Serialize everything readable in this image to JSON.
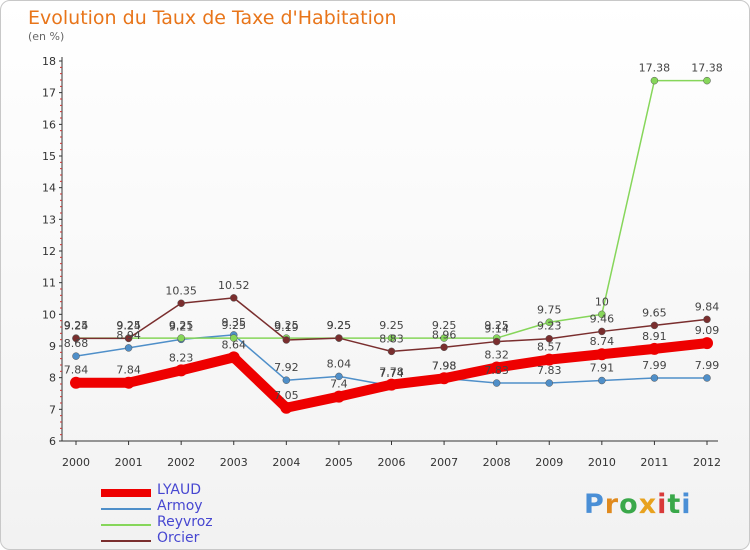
{
  "header": {
    "title": "Evolution du Taux de Taxe d'Habitation",
    "unit": "(en %)"
  },
  "chart_data": {
    "type": "line",
    "title": "Evolution du Taux de Taxe d'Habitation",
    "ylabel": "(en %)",
    "xlabel": "",
    "x": [
      "2000",
      "2001",
      "2002",
      "2003",
      "2004",
      "2005",
      "2006",
      "2007",
      "2008",
      "2009",
      "2010",
      "2011",
      "2012"
    ],
    "ylim": [
      6,
      18
    ],
    "yticks": [
      6,
      7,
      8,
      9,
      10,
      11,
      12,
      13,
      14,
      15,
      16,
      17,
      18
    ],
    "grid": false,
    "legend_position": "bottom-left",
    "series": [
      {
        "name": "LYAUD",
        "color": "#ee0000",
        "values": [
          7.84,
          7.84,
          8.23,
          8.64,
          7.05,
          7.4,
          7.78,
          7.98,
          8.32,
          8.57,
          8.74,
          8.91,
          9.09
        ]
      },
      {
        "name": "Armoy",
        "color": "#4f8fc9",
        "values": [
          8.68,
          8.94,
          9.21,
          9.35,
          7.92,
          8.04,
          7.74,
          7.98,
          7.83,
          7.83,
          7.91,
          7.99,
          7.99
        ]
      },
      {
        "name": "Reyvroz",
        "color": "#86d65a",
        "values": [
          9.25,
          9.25,
          9.25,
          9.25,
          9.25,
          9.25,
          9.25,
          9.25,
          9.25,
          9.75,
          10,
          17.38,
          17.38
        ]
      },
      {
        "name": "Orcier",
        "color": "#7a2e2e",
        "values": [
          9.24,
          9.24,
          10.35,
          10.52,
          9.19,
          9.25,
          8.83,
          8.96,
          9.14,
          9.23,
          9.46,
          9.65,
          9.84
        ]
      }
    ]
  },
  "branding": {
    "logo": "Proxiti"
  }
}
